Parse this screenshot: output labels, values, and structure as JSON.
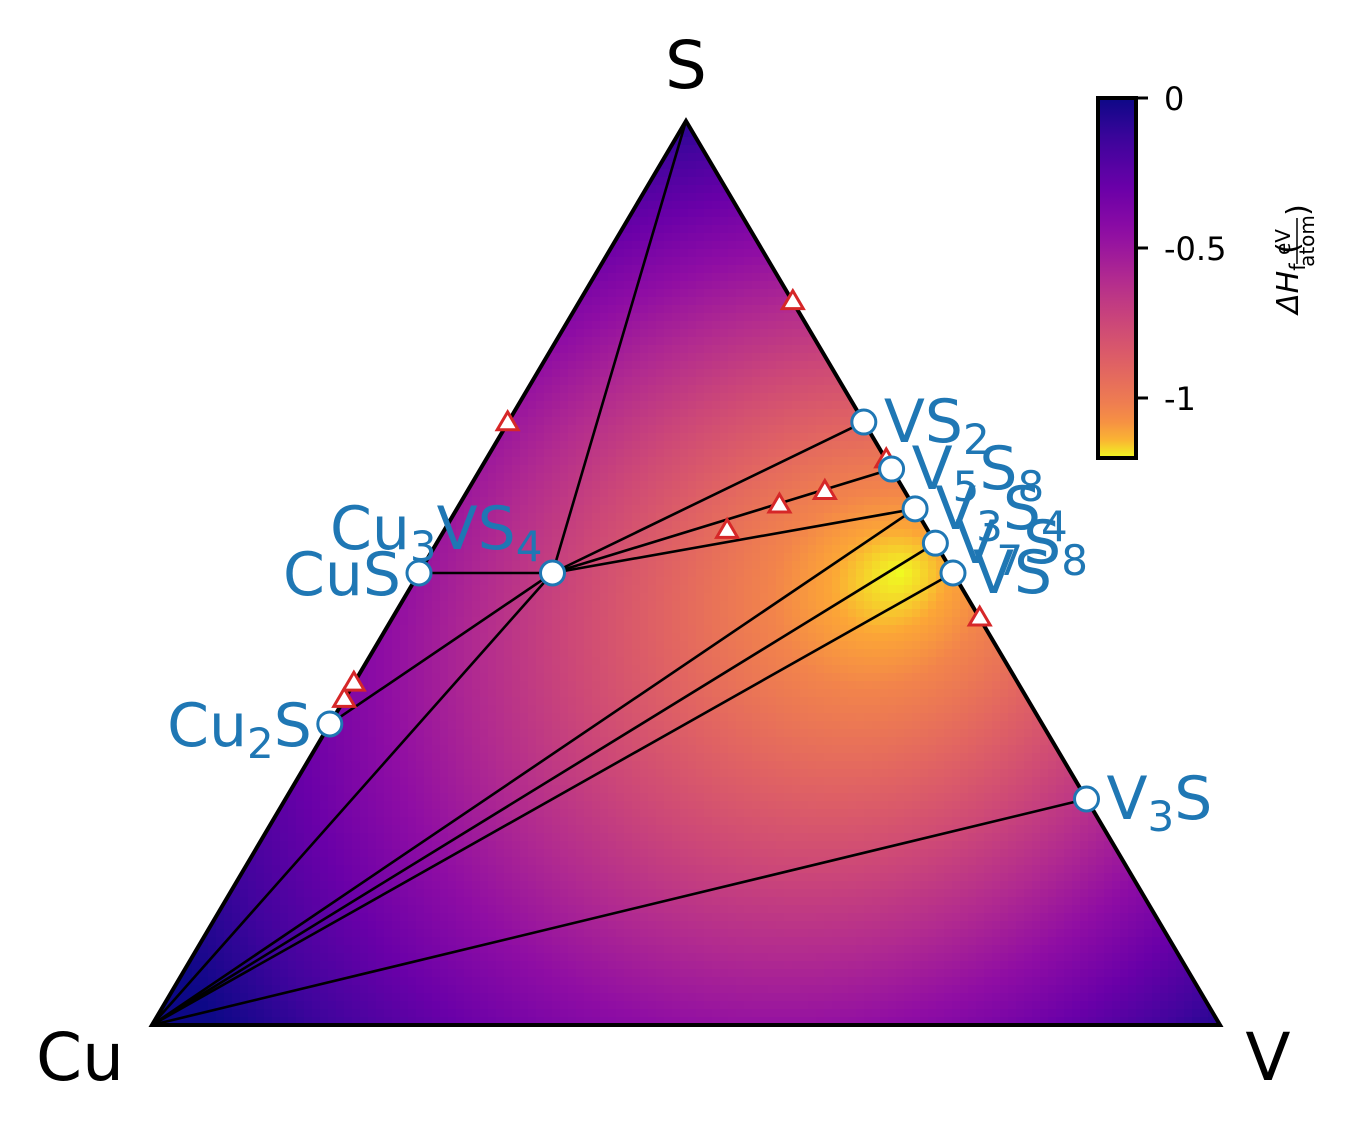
{
  "chart_data": {
    "type": "scatter",
    "subtype": "ternary-phase-diagram",
    "vertices": {
      "top": "S",
      "left": "Cu",
      "right": "V"
    },
    "stable_phases": [
      {
        "label": "CuS",
        "sub": [],
        "comp": {
          "Cu": 0.5,
          "V": 0.0,
          "S": 0.5
        }
      },
      {
        "label": "Cu2S",
        "sub": [
          2
        ],
        "comp": {
          "Cu": 0.667,
          "V": 0.0,
          "S": 0.333
        }
      },
      {
        "label": "Cu3VS4",
        "sub": [
          2,
          5
        ],
        "comp": {
          "Cu": 0.375,
          "V": 0.125,
          "S": 0.5
        }
      },
      {
        "label": "VS2",
        "sub": [
          2
        ],
        "comp": {
          "Cu": 0.0,
          "V": 0.333,
          "S": 0.667
        }
      },
      {
        "label": "V5S8",
        "sub": [
          1,
          3
        ],
        "comp": {
          "Cu": 0.0,
          "V": 0.385,
          "S": 0.615
        }
      },
      {
        "label": "V3S4",
        "sub": [
          1,
          3
        ],
        "comp": {
          "Cu": 0.0,
          "V": 0.429,
          "S": 0.571
        }
      },
      {
        "label": "V7S8",
        "sub": [
          1,
          3
        ],
        "comp": {
          "Cu": 0.0,
          "V": 0.467,
          "S": 0.533
        }
      },
      {
        "label": "VS",
        "sub": [],
        "comp": {
          "Cu": 0.0,
          "V": 0.5,
          "S": 0.5
        }
      },
      {
        "label": "V3S",
        "sub": [
          1
        ],
        "comp": {
          "Cu": 0.0,
          "V": 0.75,
          "S": 0.25
        }
      }
    ],
    "unstable_phases": [
      {
        "Cu": 0.0,
        "V": 0.2,
        "S": 0.8
      },
      {
        "Cu": 0.334,
        "V": 0.0,
        "S": 0.666
      },
      {
        "Cu": 0.0,
        "V": 0.375,
        "S": 0.625
      },
      {
        "Cu": 0.0,
        "V": 0.55,
        "S": 0.45
      },
      {
        "Cu": 0.622,
        "V": 0.0,
        "S": 0.378
      },
      {
        "Cu": 0.64,
        "V": 0.0,
        "S": 0.36
      },
      {
        "Cu": 0.125,
        "V": 0.3,
        "S": 0.575
      },
      {
        "Cu": 0.075,
        "V": 0.335,
        "S": 0.59
      },
      {
        "Cu": 0.188,
        "V": 0.265,
        "S": 0.547
      }
    ],
    "tie_lines": [
      [
        "S",
        "Cu3VS4"
      ],
      [
        "CuS",
        "Cu3VS4"
      ],
      [
        "Cu2S",
        "Cu3VS4"
      ],
      [
        "Cu",
        "Cu3VS4"
      ],
      [
        "Cu3VS4",
        "VS2"
      ],
      [
        "Cu3VS4",
        "V5S8"
      ],
      [
        "Cu3VS4",
        "V3S4"
      ],
      [
        "Cu",
        "V3S4"
      ],
      [
        "Cu",
        "V7S8"
      ],
      [
        "Cu",
        "VS"
      ],
      [
        "Cu",
        "V3S"
      ]
    ],
    "colorbar": {
      "label": "ΔH",
      "label_sub": "f",
      "unit_num": "eV",
      "unit_den": "atom",
      "range": [
        -1.2,
        0
      ],
      "ticks": [
        {
          "value": 0,
          "label": "0"
        },
        {
          "value": -0.5,
          "label": "-0.5"
        },
        {
          "value": -1,
          "label": "-1"
        }
      ],
      "colormap": "plasma",
      "min_location": {
        "Cu": 0.05,
        "V": 0.45,
        "S": 0.5
      }
    },
    "colors": {
      "stable_marker": "#1f77b4",
      "label_color": "#1f77b4",
      "unstable_marker": "#d62728",
      "tie_line": "#000000"
    }
  }
}
